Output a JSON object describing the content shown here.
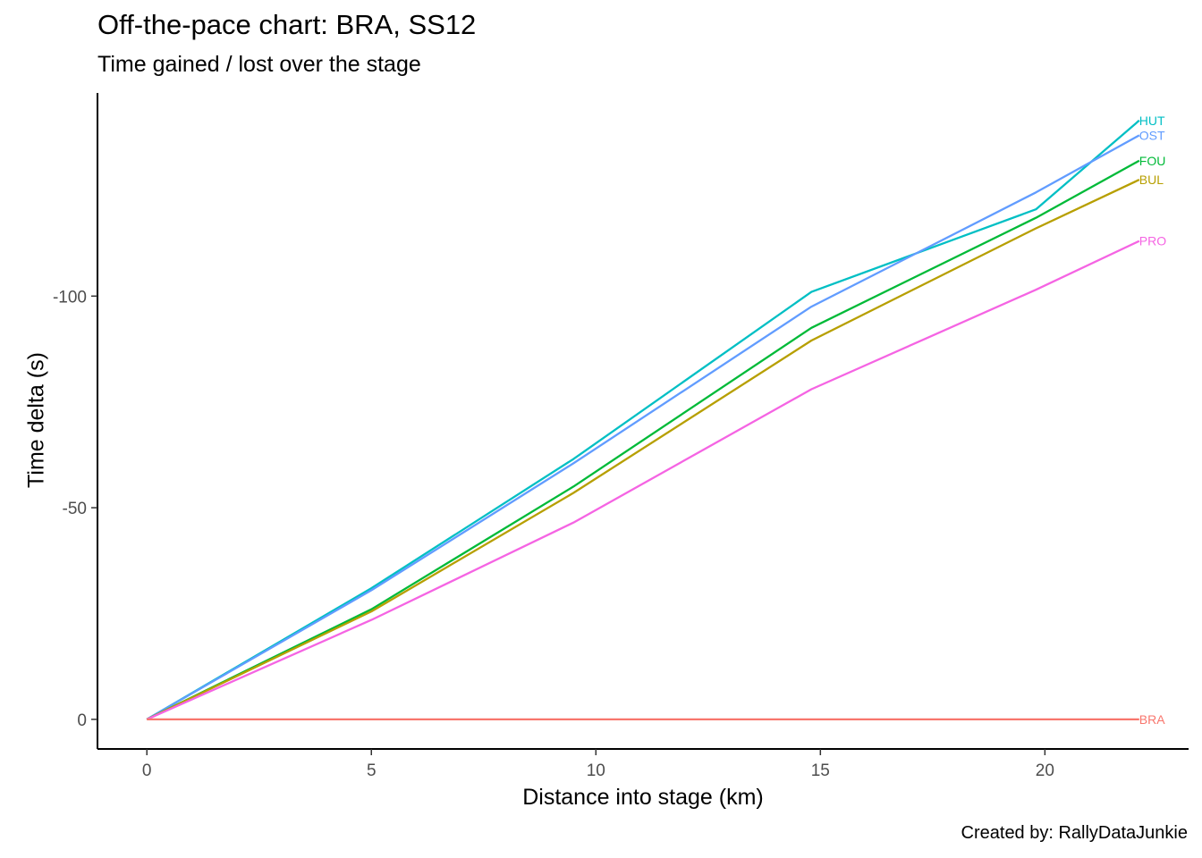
{
  "chart_data": {
    "type": "line",
    "title": "Off-the-pace chart: BRA, SS12",
    "subtitle": "Time gained / lost over the stage",
    "caption": "Created by: RallyDataJunkie",
    "xlabel": "Distance into stage (km)",
    "ylabel": "Time delta (s)",
    "xlim": [
      -1.1,
      23.2
    ],
    "ylim": [
      -148,
      7
    ],
    "y_reversed": true,
    "x_ticks": [
      0,
      5,
      10,
      15,
      20
    ],
    "x_tick_labels": [
      "0",
      "5",
      "10",
      "15",
      "20"
    ],
    "y_ticks": [
      0,
      -50,
      -100
    ],
    "y_tick_labels": [
      "0",
      "-50",
      "-100"
    ],
    "grid": false,
    "legend": "none (series labels at line ends)",
    "x": [
      0,
      5,
      9.5,
      14.8,
      19.8,
      22.1
    ],
    "series": [
      {
        "name": "HUT",
        "color": "#00BFC4",
        "values": [
          0,
          -31.0,
          -61.5,
          -101.0,
          -120.5,
          -141.5
        ]
      },
      {
        "name": "OST",
        "color": "#619CFF",
        "values": [
          0,
          -30.5,
          -60.5,
          -97.5,
          -124.5,
          -138.0
        ]
      },
      {
        "name": "FOU",
        "color": "#00BA38",
        "values": [
          0,
          -26.0,
          -55.0,
          -92.5,
          -118.5,
          -132.0
        ]
      },
      {
        "name": "BUL",
        "color": "#B79F00",
        "values": [
          0,
          -25.5,
          -53.5,
          -89.5,
          -116.0,
          -127.5
        ]
      },
      {
        "name": "PRO",
        "color": "#F564E3",
        "values": [
          0,
          -23.5,
          -46.5,
          -78.0,
          -101.5,
          -113.0
        ]
      },
      {
        "name": "BRA",
        "color": "#F8766D",
        "values": [
          0,
          0,
          0,
          0,
          0,
          0
        ]
      }
    ]
  }
}
